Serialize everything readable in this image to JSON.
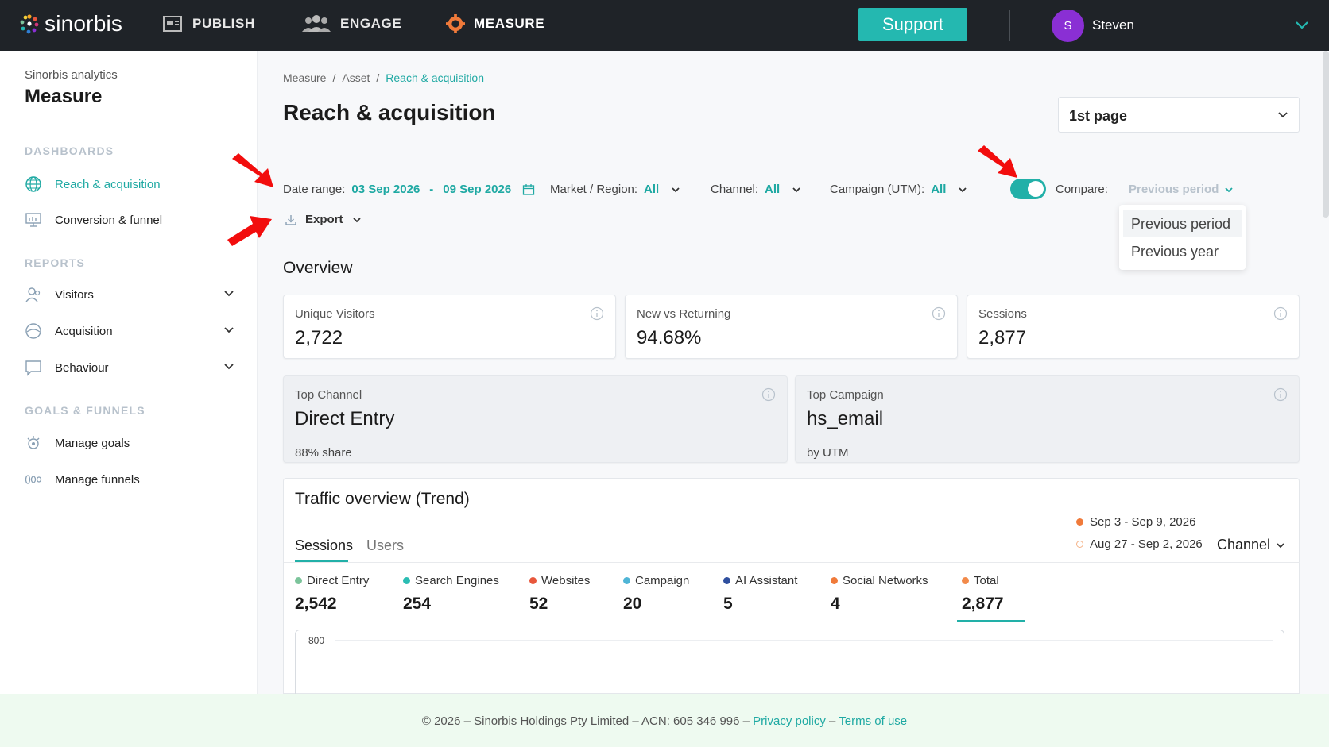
{
  "topbar": {
    "logo": "sinorbis",
    "nav": [
      {
        "label": "PUBLISH",
        "icon": "publish-icon"
      },
      {
        "label": "ENGAGE",
        "icon": "people-icon"
      },
      {
        "label": "MEASURE",
        "icon": "measure-icon"
      }
    ],
    "support_label": "Support",
    "user_initial": "S",
    "user_name": "Steven",
    "colors": {
      "bar": "#1f2328",
      "support": "#24b8b0",
      "avatar": "#8a2fd4"
    }
  },
  "sidebar": {
    "subtitle": "Sinorbis analytics",
    "title": "Measure",
    "sections": {
      "dashboards": "DASHBOARDS",
      "reports": "REPORTS",
      "goals": "GOALS & FUNNELS"
    },
    "dashboards": [
      {
        "label": "Reach & acquisition",
        "icon": "globe-icon",
        "active": true
      },
      {
        "label": "Conversion & funnel",
        "icon": "monitor-icon"
      }
    ],
    "reports": [
      {
        "label": "Visitors",
        "icon": "visitors-icon"
      },
      {
        "label": "Acquisition",
        "icon": "acquisition-icon"
      },
      {
        "label": "Behaviour",
        "icon": "chat-icon"
      }
    ],
    "goals": [
      {
        "label": "Manage goals",
        "icon": "goal-icon"
      },
      {
        "label": "Manage funnels",
        "icon": "funnel-icon"
      }
    ]
  },
  "breadcrumb": {
    "items": [
      "Measure",
      "Asset"
    ],
    "separator": "/",
    "current": "Reach & acquisition"
  },
  "page": {
    "title": "Reach & acquisition",
    "select_value": "1st page"
  },
  "filters": {
    "date_label": "Date range:",
    "date_from": "03 Sep 2026",
    "date_dash": "-",
    "date_to": "09 Sep 2026",
    "market_label": "Market / Region:",
    "market_value": "All",
    "channel_label": "Channel:",
    "channel_value": "All",
    "campaign_label": "Campaign (UTM):",
    "campaign_value": "All",
    "compare_on": true,
    "compare_label": "Compare:",
    "compare_value": "Previous period",
    "compare_options": [
      "Previous period",
      "Previous year"
    ],
    "export_label": "Export"
  },
  "overview": {
    "title": "Overview",
    "unique_visitors": {
      "label": "Unique Visitors",
      "value": "2,722"
    },
    "new_vs_returning": {
      "label": "New vs Returning",
      "value": "94.68%"
    },
    "sessions": {
      "label": "Sessions",
      "value": "2,877"
    },
    "top_channel": {
      "label": "Top Channel",
      "value": "Direct Entry",
      "sub": "88% share"
    },
    "top_campaign": {
      "label": "Top Campaign",
      "value": "hs_email",
      "sub": "by UTM"
    }
  },
  "traffic": {
    "title": "Traffic overview (Trend)",
    "tabs": [
      "Sessions",
      "Users"
    ],
    "period_current": "Sep 3 - Sep 9, 2026",
    "period_previous": "Aug 27 - Sep 2, 2026",
    "group_by": "Channel",
    "metrics": [
      {
        "label": "Direct Entry",
        "value": "2,542",
        "color": "#7cc49b"
      },
      {
        "label": "Search Engines",
        "value": "254",
        "color": "#2bbdb3"
      },
      {
        "label": "Websites",
        "value": "52",
        "color": "#e8573c"
      },
      {
        "label": "Campaign",
        "value": "20",
        "color": "#4fb5d6"
      },
      {
        "label": "AI Assistant",
        "value": "5",
        "color": "#2f4f9e"
      },
      {
        "label": "Social Networks",
        "value": "4",
        "color": "#f07a3a"
      },
      {
        "label": "Total",
        "value": "2,877",
        "color": "#f28a4a"
      }
    ],
    "y_tick": "800"
  },
  "footer": {
    "text": "© 2026 – Sinorbis Holdings Pty Limited – ACN: 605 346 996 –",
    "privacy": "Privacy policy",
    "dash": "–",
    "terms": "Terms of use"
  }
}
